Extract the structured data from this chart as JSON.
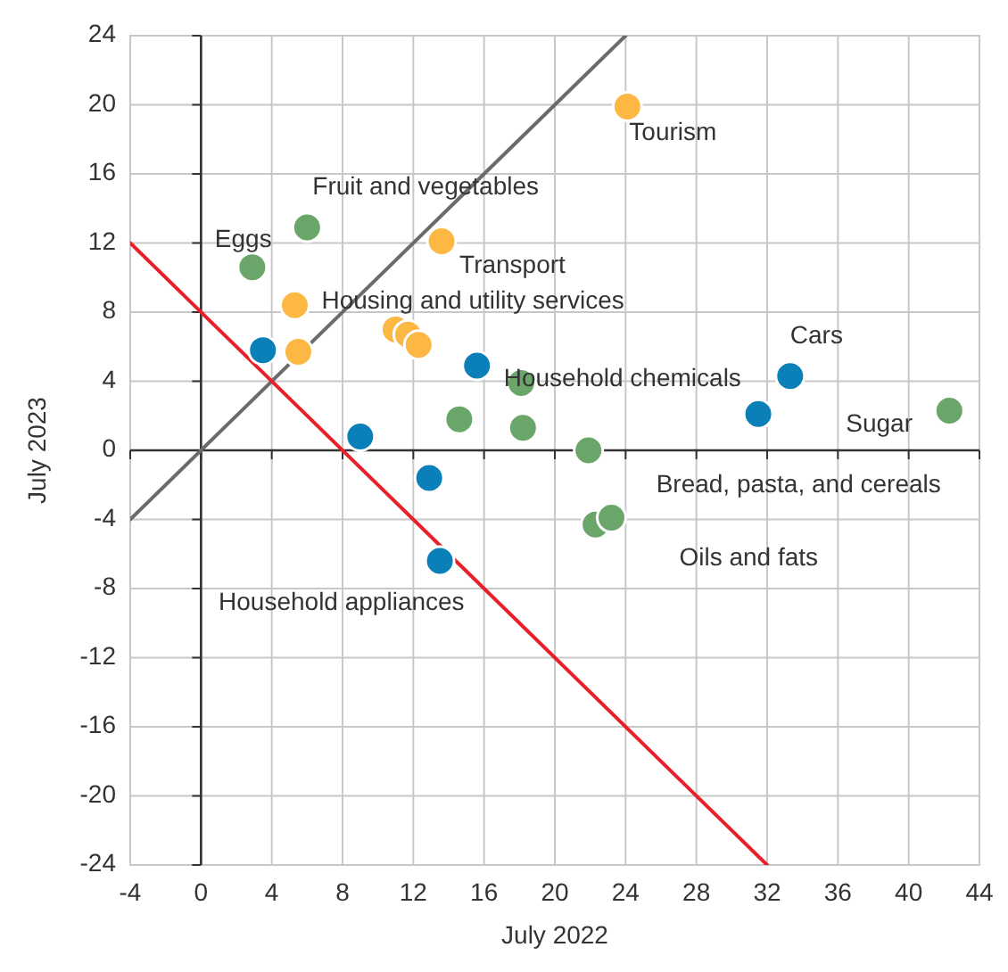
{
  "chart_data": {
    "type": "scatter",
    "xlabel": "July 2022",
    "ylabel": "July 2023",
    "xlim": [
      -4,
      44
    ],
    "ylim": [
      -24,
      24
    ],
    "xticks": [
      -4,
      0,
      4,
      8,
      12,
      16,
      20,
      24,
      28,
      32,
      36,
      40,
      44
    ],
    "yticks": [
      -24,
      -20,
      -16,
      -12,
      -8,
      -4,
      0,
      4,
      8,
      12,
      16,
      20,
      24
    ],
    "grid": true,
    "series": [
      {
        "color": "#6aa56a",
        "marker": "circle",
        "x": [
          2.9,
          6.0,
          14.6,
          18.1,
          18.2,
          21.9,
          22.3,
          23.2,
          42.3
        ],
        "values": [
          10.6,
          12.9,
          1.8,
          3.9,
          1.3,
          0,
          -4.3,
          -3.9,
          2.3
        ]
      },
      {
        "color": "#fdb743",
        "marker": "circle",
        "x": [
          24.1,
          13.6,
          5.3,
          5.5,
          11.0,
          11.7,
          12.3
        ],
        "values": [
          19.9,
          12.1,
          8.4,
          5.7,
          7.0,
          6.7,
          6.1
        ]
      },
      {
        "color": "#0a7fb8",
        "marker": "circle",
        "x": [
          3.5,
          9.0,
          12.9,
          13.5,
          15.6,
          33.3,
          31.5
        ],
        "values": [
          5.8,
          0.8,
          -1.6,
          -6.4,
          4.9,
          4.3,
          2.1
        ]
      },
      {
        "type": "line",
        "color": "#6b6b6b",
        "marker": "none",
        "x": [
          -4,
          24
        ],
        "values": [
          -4,
          24
        ]
      },
      {
        "type": "line",
        "color": "#e8202a",
        "marker": "none",
        "x": [
          -4,
          32
        ],
        "values": [
          12,
          -24
        ]
      }
    ],
    "annotations": [
      {
        "text": "Tourism",
        "x": 24.1,
        "y": 19.9
      },
      {
        "text": "Fruit and vegetables",
        "x": 6.0,
        "y": 12.9
      },
      {
        "text": "Eggs",
        "x": 2.9,
        "y": 10.6
      },
      {
        "text": "Transport",
        "x": 13.6,
        "y": 12.1
      },
      {
        "text": "Housing and utility services",
        "x": 5.3,
        "y": 8.4
      },
      {
        "text": "Household chemicals",
        "x": 15.6,
        "y": 4.9
      },
      {
        "text": "Cars",
        "x": 33.3,
        "y": 4.3
      },
      {
        "text": "Sugar",
        "x": 42.3,
        "y": 2.3
      },
      {
        "text": "Bread, pasta, and cereals",
        "x": 21.9,
        "y": 0
      },
      {
        "text": "Oils and fats",
        "x": 23.2,
        "y": -3.9
      },
      {
        "text": "Household appliances",
        "x": 13.5,
        "y": -6.4
      }
    ]
  }
}
